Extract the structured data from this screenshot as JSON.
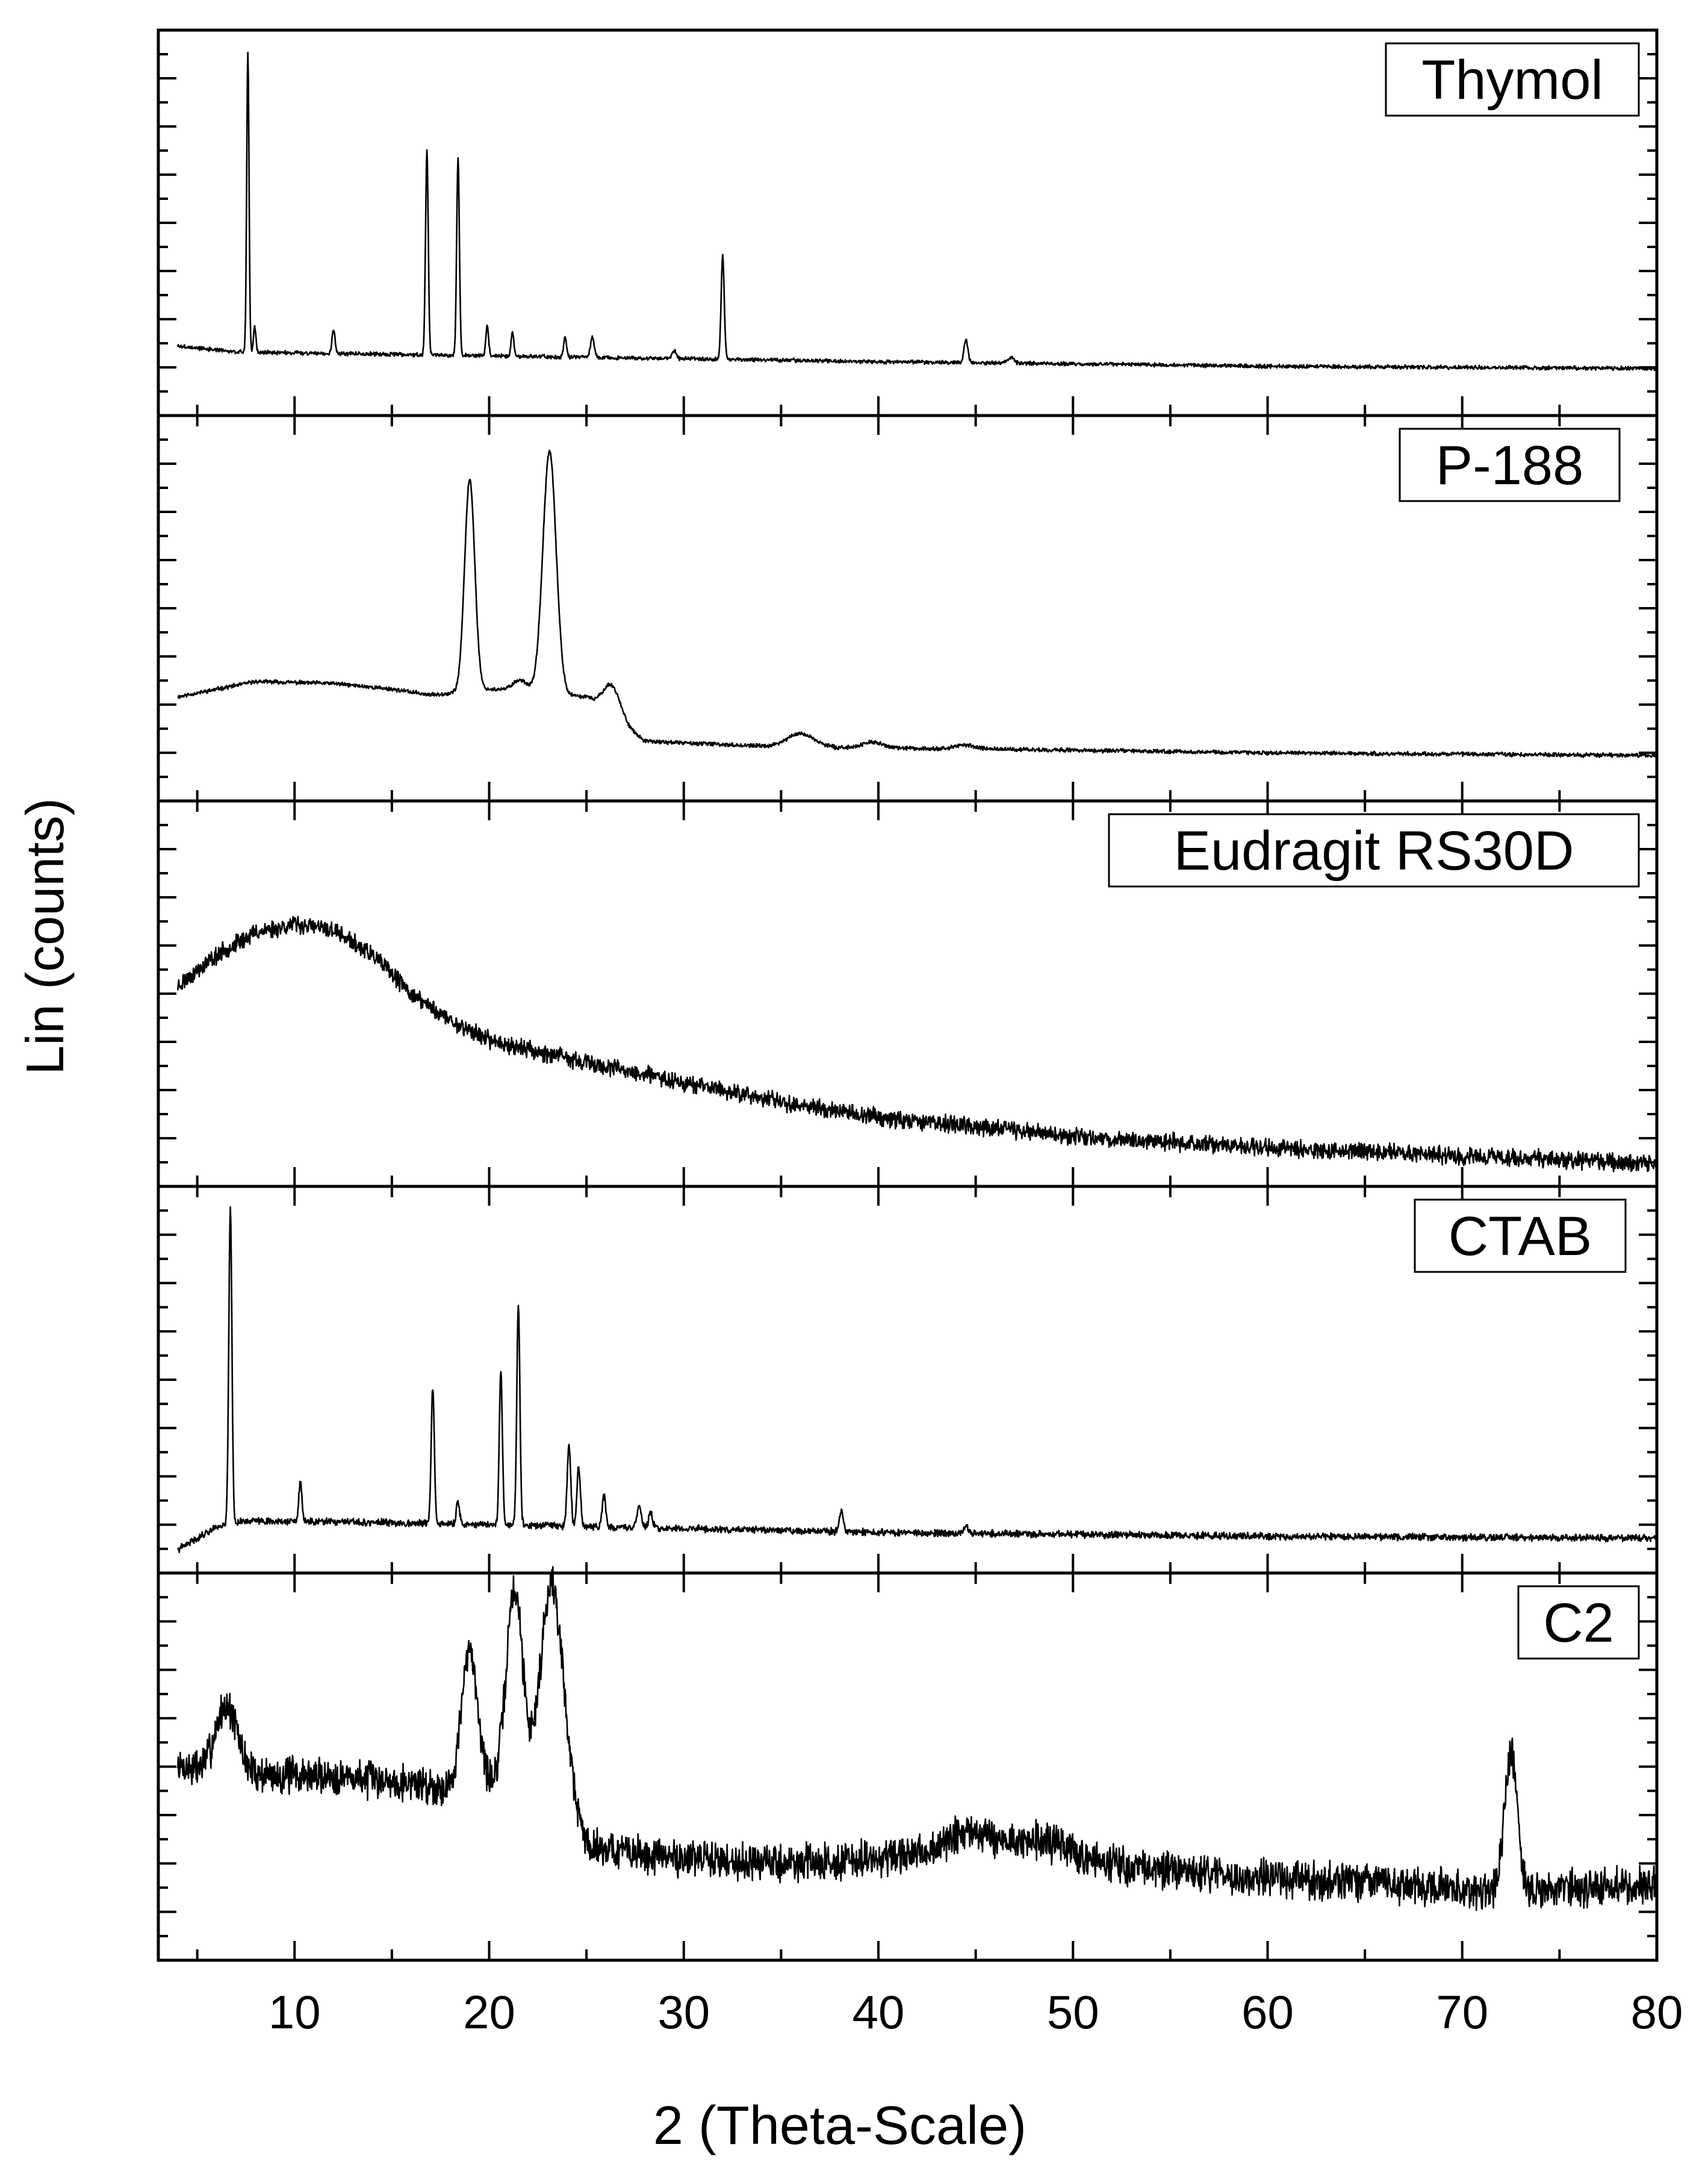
{
  "chart_data": {
    "type": "line",
    "xlabel": "2 (Theta-Scale)",
    "ylabel": "Lin (counts)",
    "xlim": [
      3,
      80
    ],
    "x_ticks": [
      10,
      20,
      30,
      40,
      50,
      60,
      70,
      80
    ],
    "y_tick_labels": "none",
    "grid": false,
    "layout": "five vertically stacked panels sharing the x axis",
    "line_color": "#000000",
    "panels": [
      {
        "label": "Thymol",
        "ylim": [
          0,
          1
        ],
        "baseline": [
          [
            4,
            0.18
          ],
          [
            7,
            0.165
          ],
          [
            20,
            0.155
          ],
          [
            40,
            0.14
          ],
          [
            60,
            0.128
          ],
          [
            80,
            0.122
          ]
        ],
        "peaks": [
          [
            7.6,
            0.78,
            0.06
          ],
          [
            7.95,
            0.07,
            0.06
          ],
          [
            12.0,
            0.06,
            0.08
          ],
          [
            16.8,
            0.53,
            0.07
          ],
          [
            18.4,
            0.51,
            0.07
          ],
          [
            19.9,
            0.08,
            0.07
          ],
          [
            21.2,
            0.065,
            0.07
          ],
          [
            23.9,
            0.055,
            0.07
          ],
          [
            25.3,
            0.05,
            0.1
          ],
          [
            29.5,
            0.02,
            0.1
          ],
          [
            32.0,
            0.27,
            0.08
          ],
          [
            44.5,
            0.06,
            0.1
          ],
          [
            46.8,
            0.015,
            0.15
          ]
        ],
        "broad": [],
        "noise": 0.004,
        "seed": 3
      },
      {
        "label": "P-188",
        "ylim": [
          0,
          1
        ],
        "baseline": [
          [
            4,
            0.27
          ],
          [
            8,
            0.31
          ],
          [
            12,
            0.305
          ],
          [
            15,
            0.29
          ],
          [
            17,
            0.275
          ],
          [
            20,
            0.29
          ],
          [
            25,
            0.27
          ],
          [
            28,
            0.155
          ],
          [
            35,
            0.14
          ],
          [
            45,
            0.135
          ],
          [
            60,
            0.125
          ],
          [
            80,
            0.118
          ]
        ],
        "peaks": [
          [
            19.0,
            0.55,
            0.26
          ],
          [
            23.1,
            0.63,
            0.34
          ],
          [
            21.6,
            0.03,
            0.4
          ],
          [
            26.3,
            0.08,
            0.45
          ],
          [
            36.0,
            0.035,
            0.7
          ],
          [
            39.7,
            0.015,
            0.5
          ],
          [
            44.5,
            0.01,
            0.5
          ]
        ],
        "broad": [],
        "noise": 0.004,
        "seed": 11
      },
      {
        "label": "Eudragit RS30D",
        "ylim": [
          0,
          1
        ],
        "baseline": [
          [
            4,
            0.52
          ],
          [
            6,
            0.6
          ],
          [
            8,
            0.66
          ],
          [
            10,
            0.68
          ],
          [
            12,
            0.665
          ],
          [
            14,
            0.6
          ],
          [
            16,
            0.5
          ],
          [
            18,
            0.43
          ],
          [
            20,
            0.38
          ],
          [
            25,
            0.32
          ],
          [
            30,
            0.27
          ],
          [
            35,
            0.22
          ],
          [
            40,
            0.18
          ],
          [
            45,
            0.155
          ],
          [
            50,
            0.13
          ],
          [
            55,
            0.115
          ],
          [
            60,
            0.1
          ],
          [
            70,
            0.08
          ],
          [
            80,
            0.06
          ]
        ],
        "peaks": [],
        "broad": [],
        "noise": 0.018,
        "seed": 23
      },
      {
        "label": "CTAB",
        "ylim": [
          0,
          1
        ],
        "baseline": [
          [
            4,
            0.06
          ],
          [
            5,
            0.09
          ],
          [
            6,
            0.12
          ],
          [
            7.5,
            0.135
          ],
          [
            15,
            0.13
          ],
          [
            25,
            0.12
          ],
          [
            40,
            0.105
          ],
          [
            60,
            0.095
          ],
          [
            80,
            0.09
          ]
        ],
        "peaks": [
          [
            6.7,
            0.82,
            0.08
          ],
          [
            10.3,
            0.1,
            0.08
          ],
          [
            17.1,
            0.35,
            0.08
          ],
          [
            18.4,
            0.06,
            0.08
          ],
          [
            20.6,
            0.4,
            0.08
          ],
          [
            21.5,
            0.57,
            0.08
          ],
          [
            24.1,
            0.21,
            0.09
          ],
          [
            24.6,
            0.15,
            0.09
          ],
          [
            25.9,
            0.08,
            0.09
          ],
          [
            27.7,
            0.06,
            0.1
          ],
          [
            28.3,
            0.04,
            0.1
          ],
          [
            38.1,
            0.05,
            0.1
          ],
          [
            44.5,
            0.02,
            0.1
          ]
        ],
        "broad": [],
        "noise": 0.007,
        "seed": 41
      },
      {
        "label": "C2",
        "ylim": [
          0,
          1
        ],
        "baseline": [
          [
            4,
            0.5
          ],
          [
            8,
            0.48
          ],
          [
            12,
            0.475
          ],
          [
            16,
            0.46
          ],
          [
            18,
            0.44
          ],
          [
            20,
            0.45
          ],
          [
            22,
            0.46
          ],
          [
            24,
            0.45
          ],
          [
            25,
            0.3
          ],
          [
            28,
            0.27
          ],
          [
            35,
            0.25
          ],
          [
            40,
            0.26
          ],
          [
            45,
            0.28
          ],
          [
            50,
            0.26
          ],
          [
            55,
            0.23
          ],
          [
            60,
            0.21
          ],
          [
            65,
            0.2
          ],
          [
            72,
            0.18
          ],
          [
            80,
            0.19
          ]
        ],
        "peaks": [
          [
            6.5,
            0.17,
            0.55
          ],
          [
            19.0,
            0.35,
            0.42
          ],
          [
            21.3,
            0.5,
            0.42
          ],
          [
            23.2,
            0.52,
            0.55
          ],
          [
            44.7,
            0.05,
            1.2
          ],
          [
            48.3,
            0.04,
            1.4
          ],
          [
            72.5,
            0.35,
            0.32
          ]
        ],
        "broad": [],
        "noise": 0.038,
        "seed": 7
      }
    ]
  }
}
